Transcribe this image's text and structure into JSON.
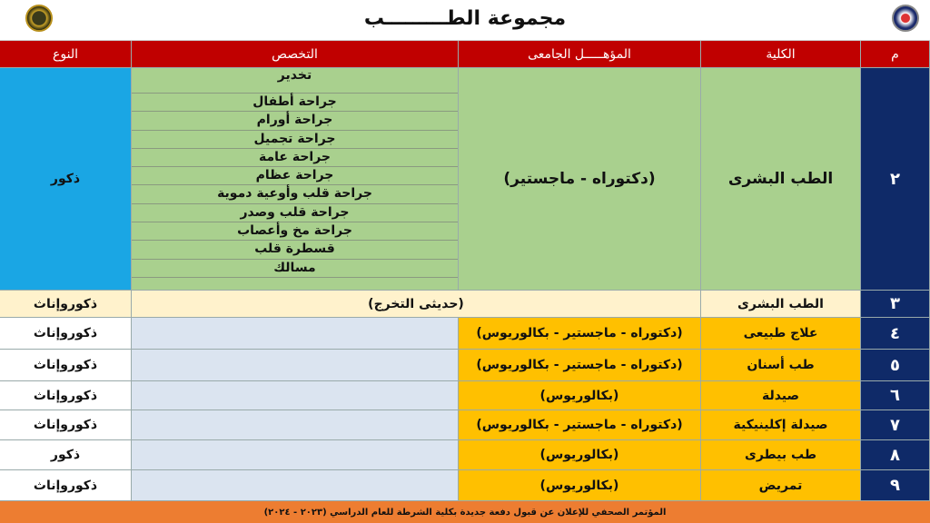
{
  "header": {
    "title": "مجموعة الطـــــــــب"
  },
  "columns": {
    "no": "م",
    "college": "الكلية",
    "degree": "المؤهـــــل الجامعى",
    "specialty": "التخصص",
    "gender": "النوع"
  },
  "rows": [
    {
      "no": "٢",
      "college": "الطب البشرى",
      "degree": "(دكتوراه - ماجستير)",
      "specialties": [
        "تخدير",
        "جراحة أطفال",
        "جراحة أورام",
        "جراحة تجميل",
        "جراحة عامة",
        "جراحة عظام",
        "جراحة قلب وأوعية دموية",
        "جراحة قلب وصدر",
        "جراحة مخ وأعصاب",
        "قسطرة قلب",
        "مسالك"
      ],
      "gender": "ذكور"
    },
    {
      "no": "٣",
      "college": "الطب البشرى",
      "degree": "(حديثى التخرج)",
      "gender": "ذكوروإناث"
    },
    {
      "no": "٤",
      "college": "علاج طبيعى",
      "degree": "(دكتوراه - ماجستير - بكالوريوس)",
      "gender": "ذكوروإناث"
    },
    {
      "no": "٥",
      "college": "طب أسنان",
      "degree": "(دكتوراه - ماجستير - بكالوريوس)",
      "gender": "ذكوروإناث"
    },
    {
      "no": "٦",
      "college": "صيدلة",
      "degree": "(بكالوريوس)",
      "gender": "ذكوروإناث"
    },
    {
      "no": "٧",
      "college": "صيدلة إكلينيكية",
      "degree": "(دكتوراه - ماجستير - بكالوريوس)",
      "gender": "ذكوروإناث"
    },
    {
      "no": "٨",
      "college": "طب بيطرى",
      "degree": "(بكالوريوس)",
      "gender": "ذكور"
    },
    {
      "no": "٩",
      "college": "تمريض",
      "degree": "(بكالوريوس)",
      "gender": "ذكوروإناث"
    }
  ],
  "footer": "المؤتمر الصحفي للإعلان عن قبول دفعة جديدة بكلية الشرطة للعام الدراسي (٢٠٢٣ - ٢٠٢٤)",
  "colors": {
    "header": "#c00000",
    "number_column": "#0f2a68",
    "green": "#a9d08e",
    "orange": "#ffc000",
    "footer": "#ed7d31"
  }
}
